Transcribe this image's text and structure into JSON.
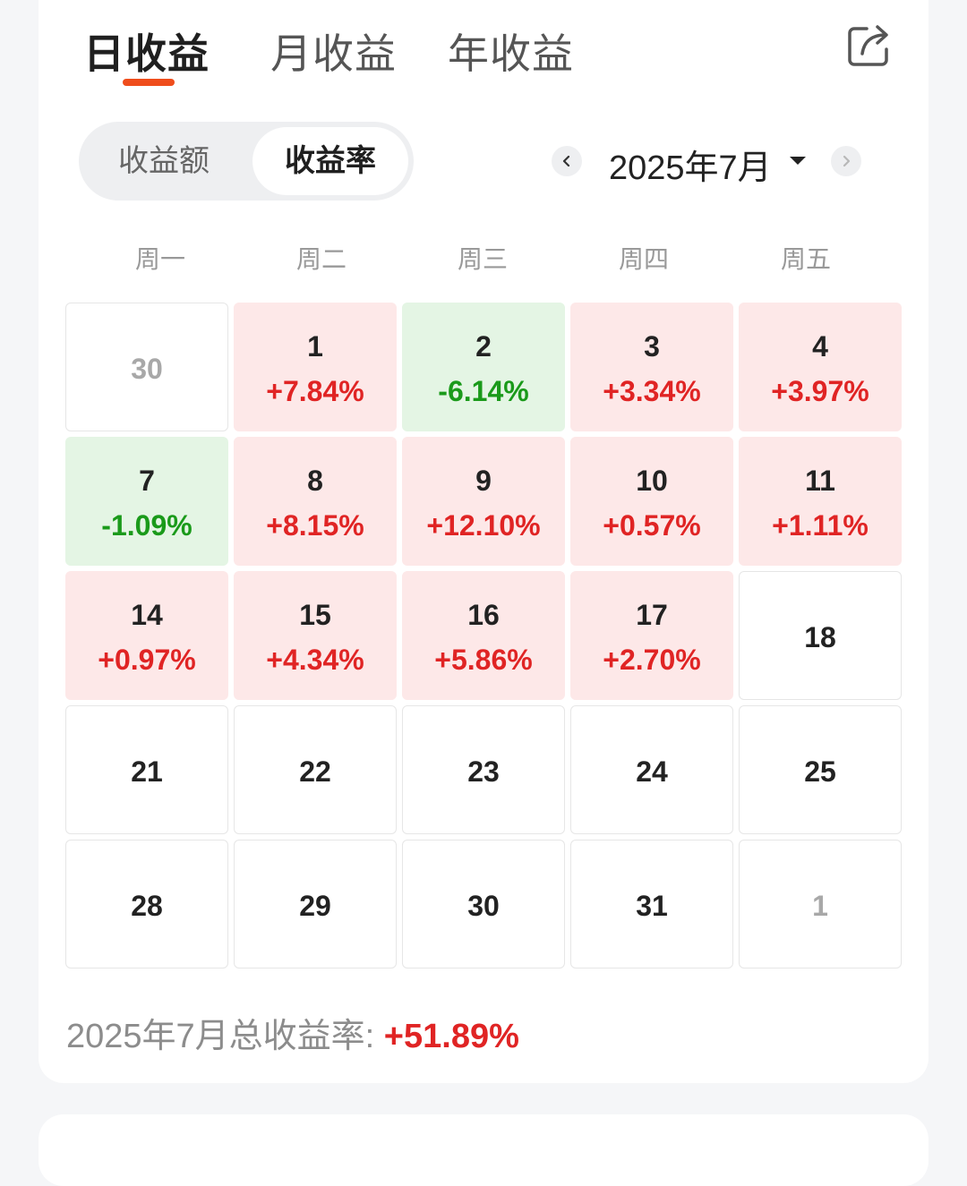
{
  "tabs": [
    {
      "label": "日收益",
      "active": true
    },
    {
      "label": "月收益",
      "active": false
    },
    {
      "label": "年收益",
      "active": false
    }
  ],
  "share": {
    "icon": "share-icon"
  },
  "segment": {
    "options": [
      {
        "label": "收益额",
        "selected": false
      },
      {
        "label": "收益率",
        "selected": true
      }
    ]
  },
  "month_nav": {
    "label": "2025年7月",
    "prev_icon": "chevron-left-icon",
    "next_icon": "chevron-right-icon",
    "dropdown_icon": "caret-down-icon"
  },
  "weekdays": [
    "周一",
    "周二",
    "周三",
    "周四",
    "周五"
  ],
  "colors": {
    "accent": "#ef4d1c",
    "gain_text": "#e02424",
    "gain_bg": "#fde8e8",
    "loss_text": "#1a9a1a",
    "loss_bg": "#e4f5e4"
  },
  "calendar": [
    [
      {
        "day": "30",
        "rate": "",
        "trend": "none",
        "in_month": false
      },
      {
        "day": "1",
        "rate": "+7.84%",
        "trend": "up",
        "in_month": true
      },
      {
        "day": "2",
        "rate": "-6.14%",
        "trend": "down",
        "in_month": true
      },
      {
        "day": "3",
        "rate": "+3.34%",
        "trend": "up",
        "in_month": true
      },
      {
        "day": "4",
        "rate": "+3.97%",
        "trend": "up",
        "in_month": true
      }
    ],
    [
      {
        "day": "7",
        "rate": "-1.09%",
        "trend": "down",
        "in_month": true
      },
      {
        "day": "8",
        "rate": "+8.15%",
        "trend": "up",
        "in_month": true
      },
      {
        "day": "9",
        "rate": "+12.10%",
        "trend": "up",
        "in_month": true
      },
      {
        "day": "10",
        "rate": "+0.57%",
        "trend": "up",
        "in_month": true
      },
      {
        "day": "11",
        "rate": "+1.11%",
        "trend": "up",
        "in_month": true
      }
    ],
    [
      {
        "day": "14",
        "rate": "+0.97%",
        "trend": "up",
        "in_month": true
      },
      {
        "day": "15",
        "rate": "+4.34%",
        "trend": "up",
        "in_month": true
      },
      {
        "day": "16",
        "rate": "+5.86%",
        "trend": "up",
        "in_month": true
      },
      {
        "day": "17",
        "rate": "+2.70%",
        "trend": "up",
        "in_month": true
      },
      {
        "day": "18",
        "rate": "",
        "trend": "none",
        "in_month": true
      }
    ],
    [
      {
        "day": "21",
        "rate": "",
        "trend": "none",
        "in_month": true
      },
      {
        "day": "22",
        "rate": "",
        "trend": "none",
        "in_month": true
      },
      {
        "day": "23",
        "rate": "",
        "trend": "none",
        "in_month": true
      },
      {
        "day": "24",
        "rate": "",
        "trend": "none",
        "in_month": true
      },
      {
        "day": "25",
        "rate": "",
        "trend": "none",
        "in_month": true
      }
    ],
    [
      {
        "day": "28",
        "rate": "",
        "trend": "none",
        "in_month": true
      },
      {
        "day": "29",
        "rate": "",
        "trend": "none",
        "in_month": true
      },
      {
        "day": "30",
        "rate": "",
        "trend": "none",
        "in_month": true
      },
      {
        "day": "31",
        "rate": "",
        "trend": "none",
        "in_month": true
      },
      {
        "day": "1",
        "rate": "",
        "trend": "none",
        "in_month": false
      }
    ]
  ],
  "summary": {
    "label": "2025年7月总收益率: ",
    "value": "+51.89%"
  }
}
